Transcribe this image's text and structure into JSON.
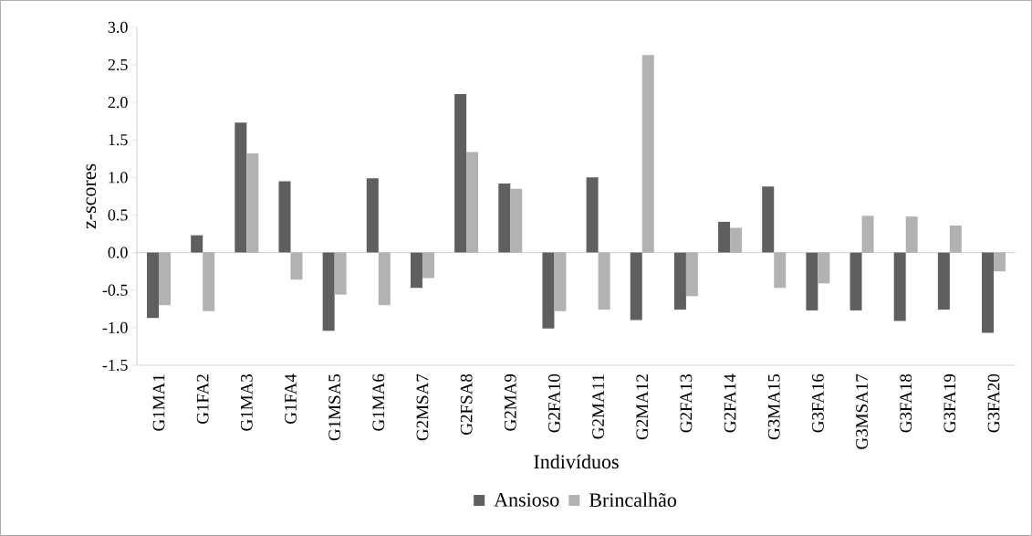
{
  "chart_data": {
    "type": "bar",
    "xlabel": "Indivíduos",
    "ylabel": "z-scores",
    "categories": [
      "G1MA1",
      "G1FA2",
      "G1MA3",
      "G1FA4",
      "G1MSA5",
      "G1MA6",
      "G2MSA7",
      "G2FSA8",
      "G2MA9",
      "G2FA10",
      "G2MA11",
      "G2MA12",
      "G2FA13",
      "G2FA14",
      "G3MA15",
      "G3FA16",
      "G3MSA17",
      "G3FA18",
      "G3FA19",
      "G3FA20"
    ],
    "series": [
      {
        "name": "Ansioso",
        "color": "#5f5f5f",
        "values": [
          -0.87,
          0.23,
          1.73,
          0.95,
          -1.04,
          0.99,
          -0.47,
          2.11,
          0.92,
          -1.01,
          1.0,
          -0.9,
          -0.76,
          0.41,
          0.88,
          -0.77,
          -0.77,
          -0.91,
          -0.76,
          -1.07
        ]
      },
      {
        "name": "Brincalhão",
        "color": "#b2b2b2",
        "values": [
          -0.7,
          -0.78,
          1.32,
          -0.36,
          -0.56,
          -0.7,
          -0.34,
          1.34,
          0.85,
          -0.78,
          -0.76,
          2.63,
          -0.58,
          0.33,
          -0.47,
          -0.41,
          0.49,
          0.48,
          0.36,
          -0.25
        ]
      }
    ],
    "ylim": [
      -1.5,
      3.0
    ],
    "yticks": [
      {
        "value": -1.5,
        "label": "-1.5"
      },
      {
        "value": -1.0,
        "label": "-1.0"
      },
      {
        "value": -0.5,
        "label": "-0.5"
      },
      {
        "value": 0,
        "label": "0.0"
      },
      {
        "value": 0.5,
        "label": "0.5"
      },
      {
        "value": 1.0,
        "label": "1.0"
      },
      {
        "value": 1.5,
        "label": "1.5"
      },
      {
        "value": 2.0,
        "label": "2.0"
      },
      {
        "value": 2.5,
        "label": "2.5"
      },
      {
        "value": 3.0,
        "label": "3.0"
      }
    ],
    "legend": "bottom"
  }
}
